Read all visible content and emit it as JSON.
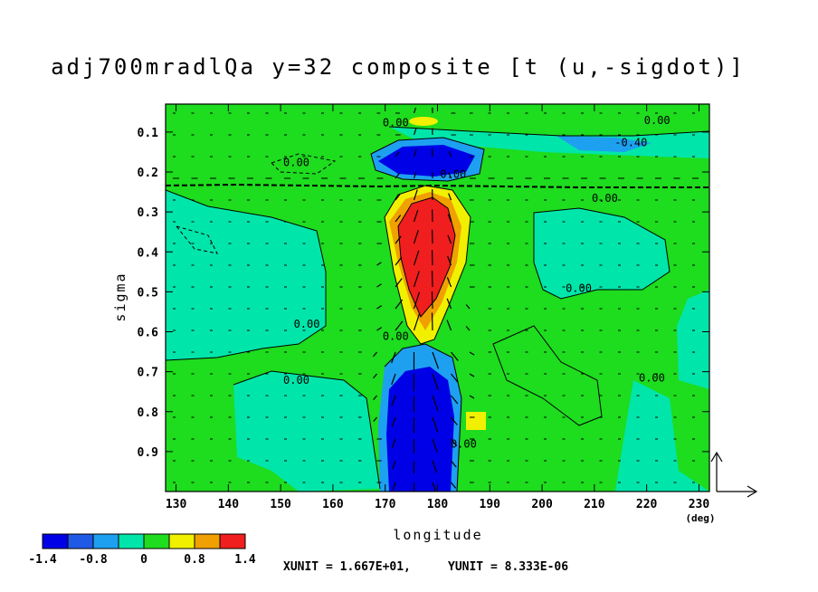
{
  "chart_data": {
    "type": "heatmap",
    "title": "adj700mradlQa y=32 composite [t (u,-sigdot)]",
    "xlabel": "longitude",
    "xunit": "(deg)",
    "ylabel": "sigma",
    "xlim": [
      128,
      232
    ],
    "ylim": [
      1.0,
      0.03
    ],
    "xticks": [
      130,
      140,
      150,
      160,
      170,
      180,
      190,
      200,
      210,
      220,
      230
    ],
    "yticks": [
      0.1,
      0.2,
      0.3,
      0.4,
      0.5,
      0.6,
      0.7,
      0.8,
      0.9
    ],
    "contour_labels": [
      {
        "text": "0.00",
        "lon": 183,
        "sigma": 0.215
      },
      {
        "text": "0.00",
        "lon": 153,
        "sigma": 0.185
      },
      {
        "text": "0.00",
        "lon": 222,
        "sigma": 0.08
      },
      {
        "text": "-0.40",
        "lon": 217,
        "sigma": 0.135
      },
      {
        "text": "0.00",
        "lon": 212,
        "sigma": 0.275
      },
      {
        "text": "0.00",
        "lon": 207,
        "sigma": 0.5
      },
      {
        "text": "0.00",
        "lon": 155,
        "sigma": 0.59
      },
      {
        "text": "0.00",
        "lon": 153,
        "sigma": 0.73
      },
      {
        "text": "0.00",
        "lon": 172,
        "sigma": 0.62
      },
      {
        "text": "0.00",
        "lon": 221,
        "sigma": 0.725
      },
      {
        "text": "0.00",
        "lon": 172,
        "sigma": 0.085
      },
      {
        "text": "0.00",
        "lon": 185,
        "sigma": 0.89
      }
    ],
    "colorbar": {
      "colors": [
        "#0000e6",
        "#1e5ae6",
        "#1ea0f0",
        "#00e6aa",
        "#1edc1e",
        "#f0f000",
        "#f0a000",
        "#f01e1e"
      ],
      "labels": [
        "-1.4",
        "-0.8",
        "0",
        "0.8",
        "1.4"
      ]
    },
    "vector_units": {
      "x": "XUNIT = 1.667E+01,",
      "y": "YUNIT = 8.333E-06"
    },
    "colors": {
      "frame": "#000000",
      "background": "#ffffff"
    }
  }
}
